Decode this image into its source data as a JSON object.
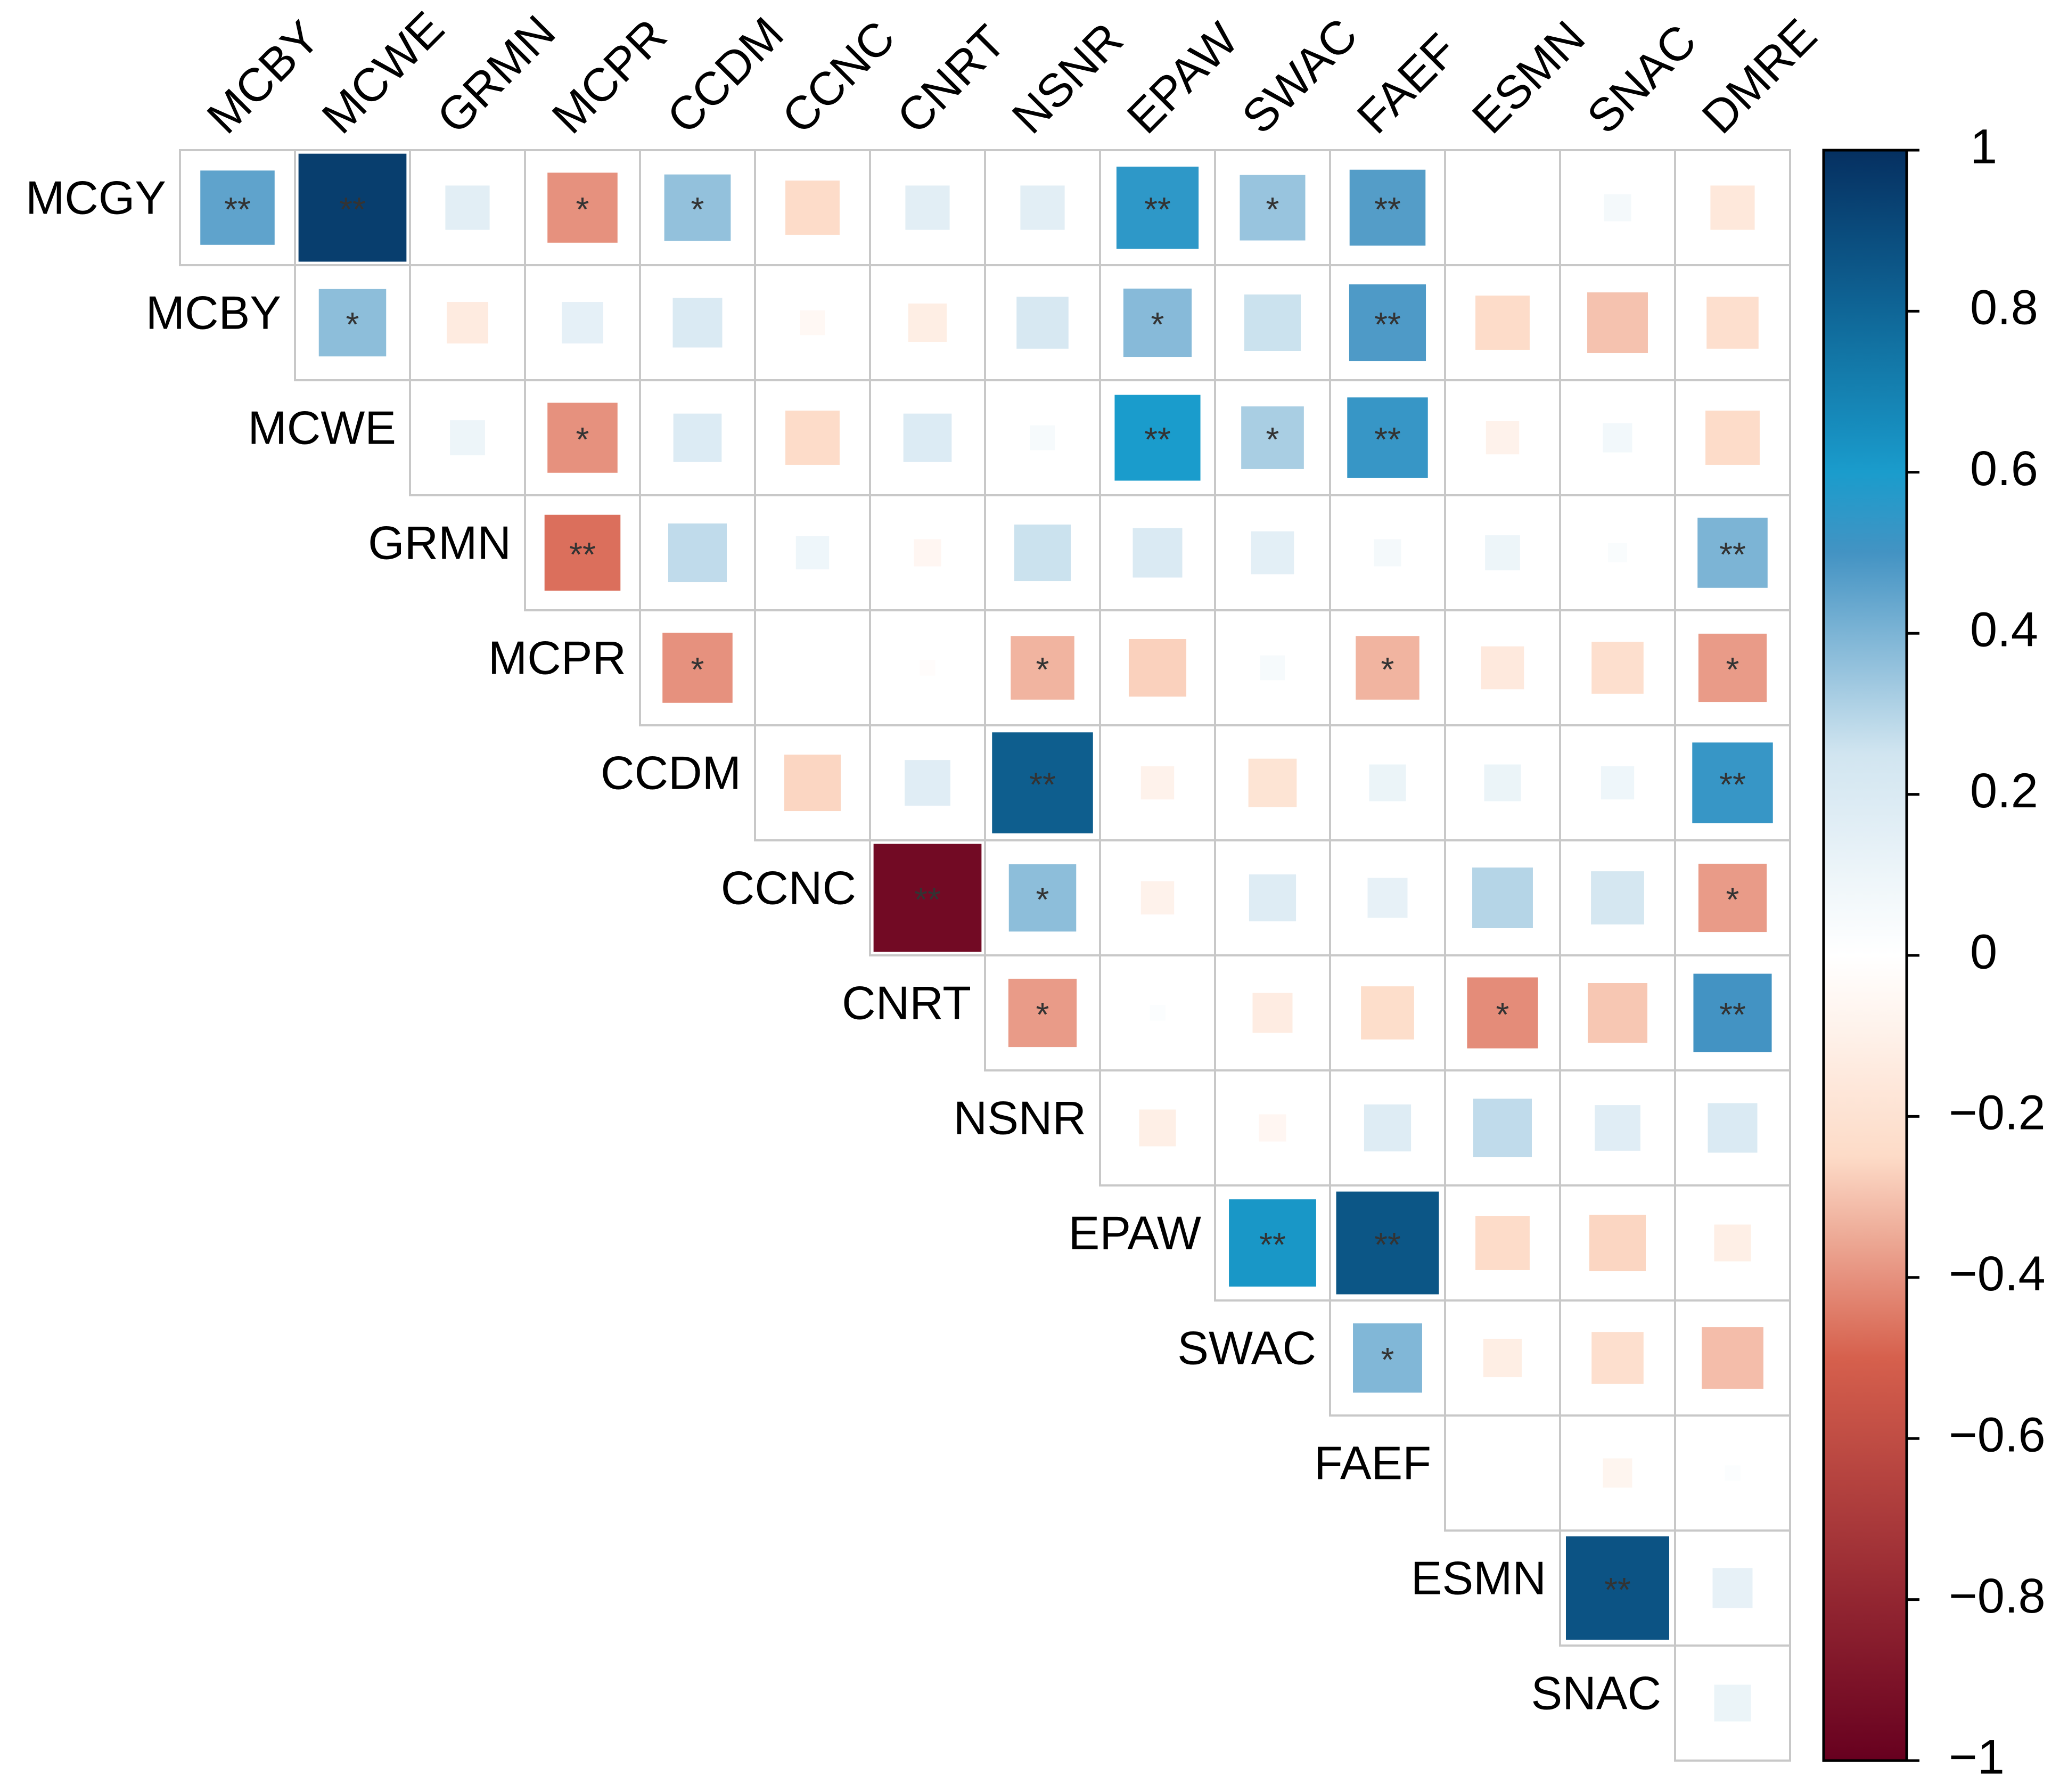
{
  "chart_data": {
    "type": "heatmap",
    "subtype": "correlation-upper-triangle",
    "row_labels": [
      "MCGY",
      "MCBY",
      "MCWE",
      "GRMN",
      "MCPR",
      "CCDM",
      "CCNC",
      "CNRT",
      "NSNR",
      "EPAW",
      "SWAC",
      "FAEF",
      "ESMN",
      "SNAC"
    ],
    "col_labels": [
      "MCBY",
      "MCWE",
      "GRMN",
      "MCPR",
      "CCDM",
      "CCNC",
      "CNRT",
      "NSNR",
      "EPAW",
      "SWAC",
      "FAEF",
      "ESMN",
      "SNAC",
      "DMRE"
    ],
    "values": [
      [
        0.45,
        0.95,
        0.16,
        -0.4,
        0.36,
        -0.24,
        0.16,
        0.16,
        0.55,
        0.35,
        0.47,
        0.0,
        0.06,
        -0.16
      ],
      [
        null,
        0.37,
        -0.14,
        0.14,
        0.2,
        -0.05,
        -0.12,
        0.22,
        0.38,
        0.26,
        0.48,
        -0.24,
        -0.3,
        -0.22
      ],
      [
        null,
        null,
        0.1,
        -0.4,
        0.19,
        -0.24,
        0.19,
        0.05,
        0.6,
        0.32,
        0.53,
        -0.09,
        0.07,
        -0.24
      ],
      [
        null,
        null,
        null,
        -0.47,
        0.28,
        0.09,
        -0.06,
        0.26,
        0.2,
        0.15,
        0.06,
        0.1,
        0.03,
        0.4
      ],
      [
        null,
        null,
        null,
        null,
        -0.4,
        0.0,
        -0.02,
        -0.33,
        -0.27,
        0.05,
        -0.33,
        -0.15,
        -0.22,
        -0.38
      ],
      [
        null,
        null,
        null,
        null,
        null,
        -0.26,
        0.17,
        0.83,
        -0.09,
        -0.19,
        0.11,
        0.11,
        0.09,
        0.53
      ],
      [
        null,
        null,
        null,
        null,
        null,
        null,
        -0.95,
        0.37,
        -0.09,
        0.18,
        0.13,
        0.3,
        0.23,
        -0.38
      ],
      [
        null,
        null,
        null,
        null,
        null,
        null,
        null,
        -0.38,
        0.02,
        -0.13,
        -0.23,
        -0.41,
        -0.29,
        0.5
      ],
      [
        null,
        null,
        null,
        null,
        null,
        null,
        null,
        null,
        -0.11,
        -0.06,
        0.18,
        0.28,
        0.17,
        0.2
      ],
      [
        null,
        null,
        null,
        null,
        null,
        null,
        null,
        null,
        null,
        0.62,
        0.86,
        -0.24,
        -0.26,
        -0.11
      ],
      [
        null,
        null,
        null,
        null,
        null,
        null,
        null,
        null,
        null,
        null,
        0.39,
        -0.12,
        -0.22,
        -0.31
      ],
      [
        null,
        null,
        null,
        null,
        null,
        null,
        null,
        null,
        null,
        null,
        null,
        0.0,
        -0.07,
        0.02
      ],
      [
        null,
        null,
        null,
        null,
        null,
        null,
        null,
        null,
        null,
        null,
        null,
        null,
        0.87,
        0.13
      ],
      [
        null,
        null,
        null,
        null,
        null,
        null,
        null,
        null,
        null,
        null,
        null,
        null,
        null,
        0.11
      ]
    ],
    "significance": [
      [
        "**",
        "**",
        "",
        "*",
        "*",
        "",
        "",
        "",
        "**",
        "*",
        "**",
        "",
        "",
        ""
      ],
      [
        "",
        "*",
        "",
        "",
        "",
        "",
        "",
        "",
        "*",
        "",
        "**",
        "",
        "",
        ""
      ],
      [
        "",
        "",
        "",
        "*",
        "",
        "",
        "",
        "",
        "**",
        "*",
        "**",
        "",
        "",
        ""
      ],
      [
        "",
        "",
        "",
        "**",
        "",
        "",
        "",
        "",
        "",
        "",
        "",
        "",
        "",
        "**"
      ],
      [
        "",
        "",
        "",
        "",
        "*",
        "",
        "",
        "*",
        "",
        "",
        "*",
        "",
        "",
        "*"
      ],
      [
        "",
        "",
        "",
        "",
        "",
        "",
        "",
        "**",
        "",
        "",
        "",
        "",
        "",
        "**"
      ],
      [
        "",
        "",
        "",
        "",
        "",
        "",
        "**",
        "*",
        "",
        "",
        "",
        "",
        "",
        "*"
      ],
      [
        "",
        "",
        "",
        "",
        "",
        "",
        "",
        "*",
        "",
        "",
        "",
        "*",
        "",
        "**"
      ],
      [
        "",
        "",
        "",
        "",
        "",
        "",
        "",
        "",
        "",
        "",
        "",
        "",
        "",
        ""
      ],
      [
        "",
        "",
        "",
        "",
        "",
        "",
        "",
        "",
        "",
        "**",
        "**",
        "",
        "",
        ""
      ],
      [
        "",
        "",
        "",
        "",
        "",
        "",
        "",
        "",
        "",
        "",
        "*",
        "",
        "",
        ""
      ],
      [
        "",
        "",
        "",
        "",
        "",
        "",
        "",
        "",
        "",
        "",
        "",
        "",
        "",
        ""
      ],
      [
        "",
        "",
        "",
        "",
        "",
        "",
        "",
        "",
        "",
        "",
        "",
        "",
        "**",
        ""
      ],
      [
        "",
        "",
        "",
        "",
        "",
        "",
        "",
        "",
        "",
        "",
        "",
        "",
        "",
        ""
      ]
    ],
    "colorbar": {
      "range": [
        -1,
        1
      ],
      "ticks": [
        1,
        0.8,
        0.6,
        0.4,
        0.2,
        0,
        -0.2,
        -0.4,
        -0.6,
        -0.8,
        -1
      ],
      "tick_labels": [
        "1",
        "0.8",
        "0.6",
        "0.4",
        "0.2",
        "0",
        "−0.2",
        "−0.4",
        "−0.6",
        "−0.8",
        "−1"
      ]
    },
    "colors": {
      "negative_extreme": "#67001f",
      "negative_strong": "#d6604d",
      "negative_light": "#fddbc7",
      "neutral": "#ffffff",
      "positive_light": "#d1e5f0",
      "positive_mid": "#4393c3",
      "positive_cyan": "#1a9ccc",
      "positive_extreme": "#053061",
      "grid": "#c8c8c8",
      "frame": "#000000"
    }
  }
}
